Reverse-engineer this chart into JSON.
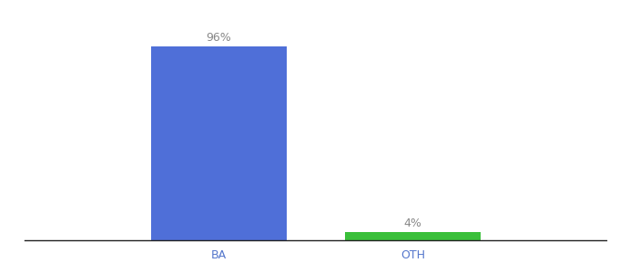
{
  "categories": [
    "BA",
    "OTH"
  ],
  "values": [
    96,
    4
  ],
  "bar_colors": [
    "#4f6fd8",
    "#3abf3a"
  ],
  "value_labels": [
    "96%",
    "4%"
  ],
  "background_color": "#ffffff",
  "ylim": [
    0,
    108
  ],
  "bar_width": 0.7,
  "label_fontsize": 9,
  "tick_fontsize": 9,
  "tick_color": "#5577cc",
  "xlim": [
    -0.5,
    2.5
  ]
}
